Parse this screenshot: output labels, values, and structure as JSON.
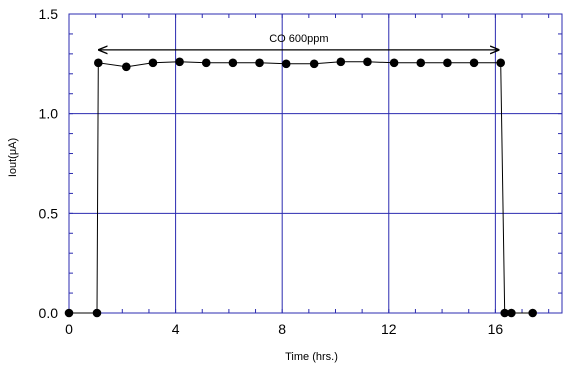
{
  "chart_data": {
    "type": "line",
    "title": "",
    "xlabel": "Time (hrs.)",
    "ylabel": "Iout(μA)",
    "xlim": [
      0,
      18.5
    ],
    "ylim": [
      0,
      1.5
    ],
    "x_ticks": [
      0,
      4,
      8,
      12,
      16
    ],
    "x_tick_labels": [
      "0",
      "4",
      "8",
      "12",
      "16"
    ],
    "y_ticks": [
      0,
      0.5,
      1.0,
      1.5
    ],
    "y_tick_labels": [
      "0.0",
      "0.5",
      "1.0",
      "1.5"
    ],
    "grid": true,
    "grid_color": "#2b2bb0",
    "line_color": "#000000",
    "annotation": {
      "text": "CO 600ppm",
      "x_start": 1.05,
      "x_end": 16.2,
      "y": 1.32
    },
    "series": [
      {
        "points": [
          {
            "x": 0,
            "y": 0
          },
          {
            "x": 1.05,
            "y": 0
          },
          {
            "x": 1.1,
            "y": 1.255
          },
          {
            "x": 2.15,
            "y": 1.235
          },
          {
            "x": 3.15,
            "y": 1.255
          },
          {
            "x": 4.15,
            "y": 1.26
          },
          {
            "x": 5.15,
            "y": 1.255
          },
          {
            "x": 6.15,
            "y": 1.255
          },
          {
            "x": 7.15,
            "y": 1.255
          },
          {
            "x": 8.15,
            "y": 1.25
          },
          {
            "x": 9.2,
            "y": 1.25
          },
          {
            "x": 10.2,
            "y": 1.26
          },
          {
            "x": 11.2,
            "y": 1.26
          },
          {
            "x": 12.2,
            "y": 1.255
          },
          {
            "x": 13.2,
            "y": 1.255
          },
          {
            "x": 14.2,
            "y": 1.255
          },
          {
            "x": 15.2,
            "y": 1.255
          },
          {
            "x": 16.2,
            "y": 1.255
          },
          {
            "x": 16.35,
            "y": 0
          },
          {
            "x": 16.6,
            "y": 0
          },
          {
            "x": 17.4,
            "y": 0
          }
        ]
      }
    ]
  }
}
